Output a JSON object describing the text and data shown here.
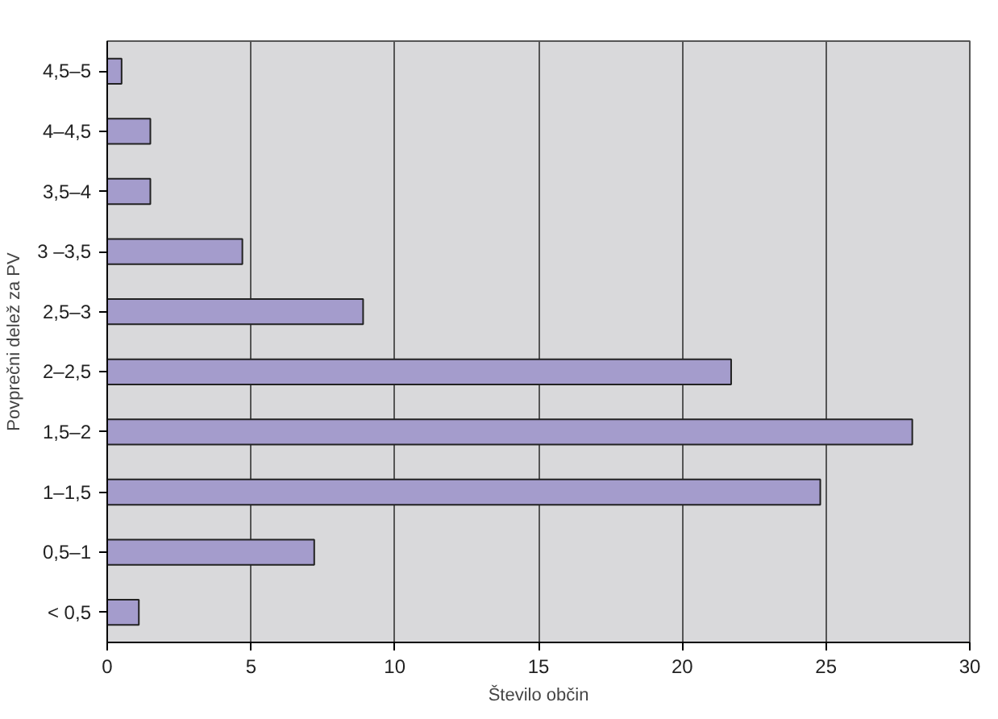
{
  "chart_data": {
    "type": "bar",
    "orientation": "horizontal",
    "xlabel": "Število občin",
    "ylabel": "Povprečni delež za PV",
    "categories": [
      "4,5–5",
      "4–4,5",
      "3,5–4",
      "3 –3,5",
      "2,5–3",
      "2–2,5",
      "1,5–2",
      "1–1,5",
      "0,5–1",
      "< 0,5"
    ],
    "values": [
      0.5,
      1.5,
      1.5,
      4.7,
      8.9,
      21.7,
      28.0,
      24.8,
      7.2,
      1.1
    ],
    "color": "#a49ccc",
    "xlim": [
      0,
      30
    ],
    "xticks": [
      0,
      5,
      10,
      15,
      20,
      25,
      30
    ],
    "grid": "x"
  }
}
